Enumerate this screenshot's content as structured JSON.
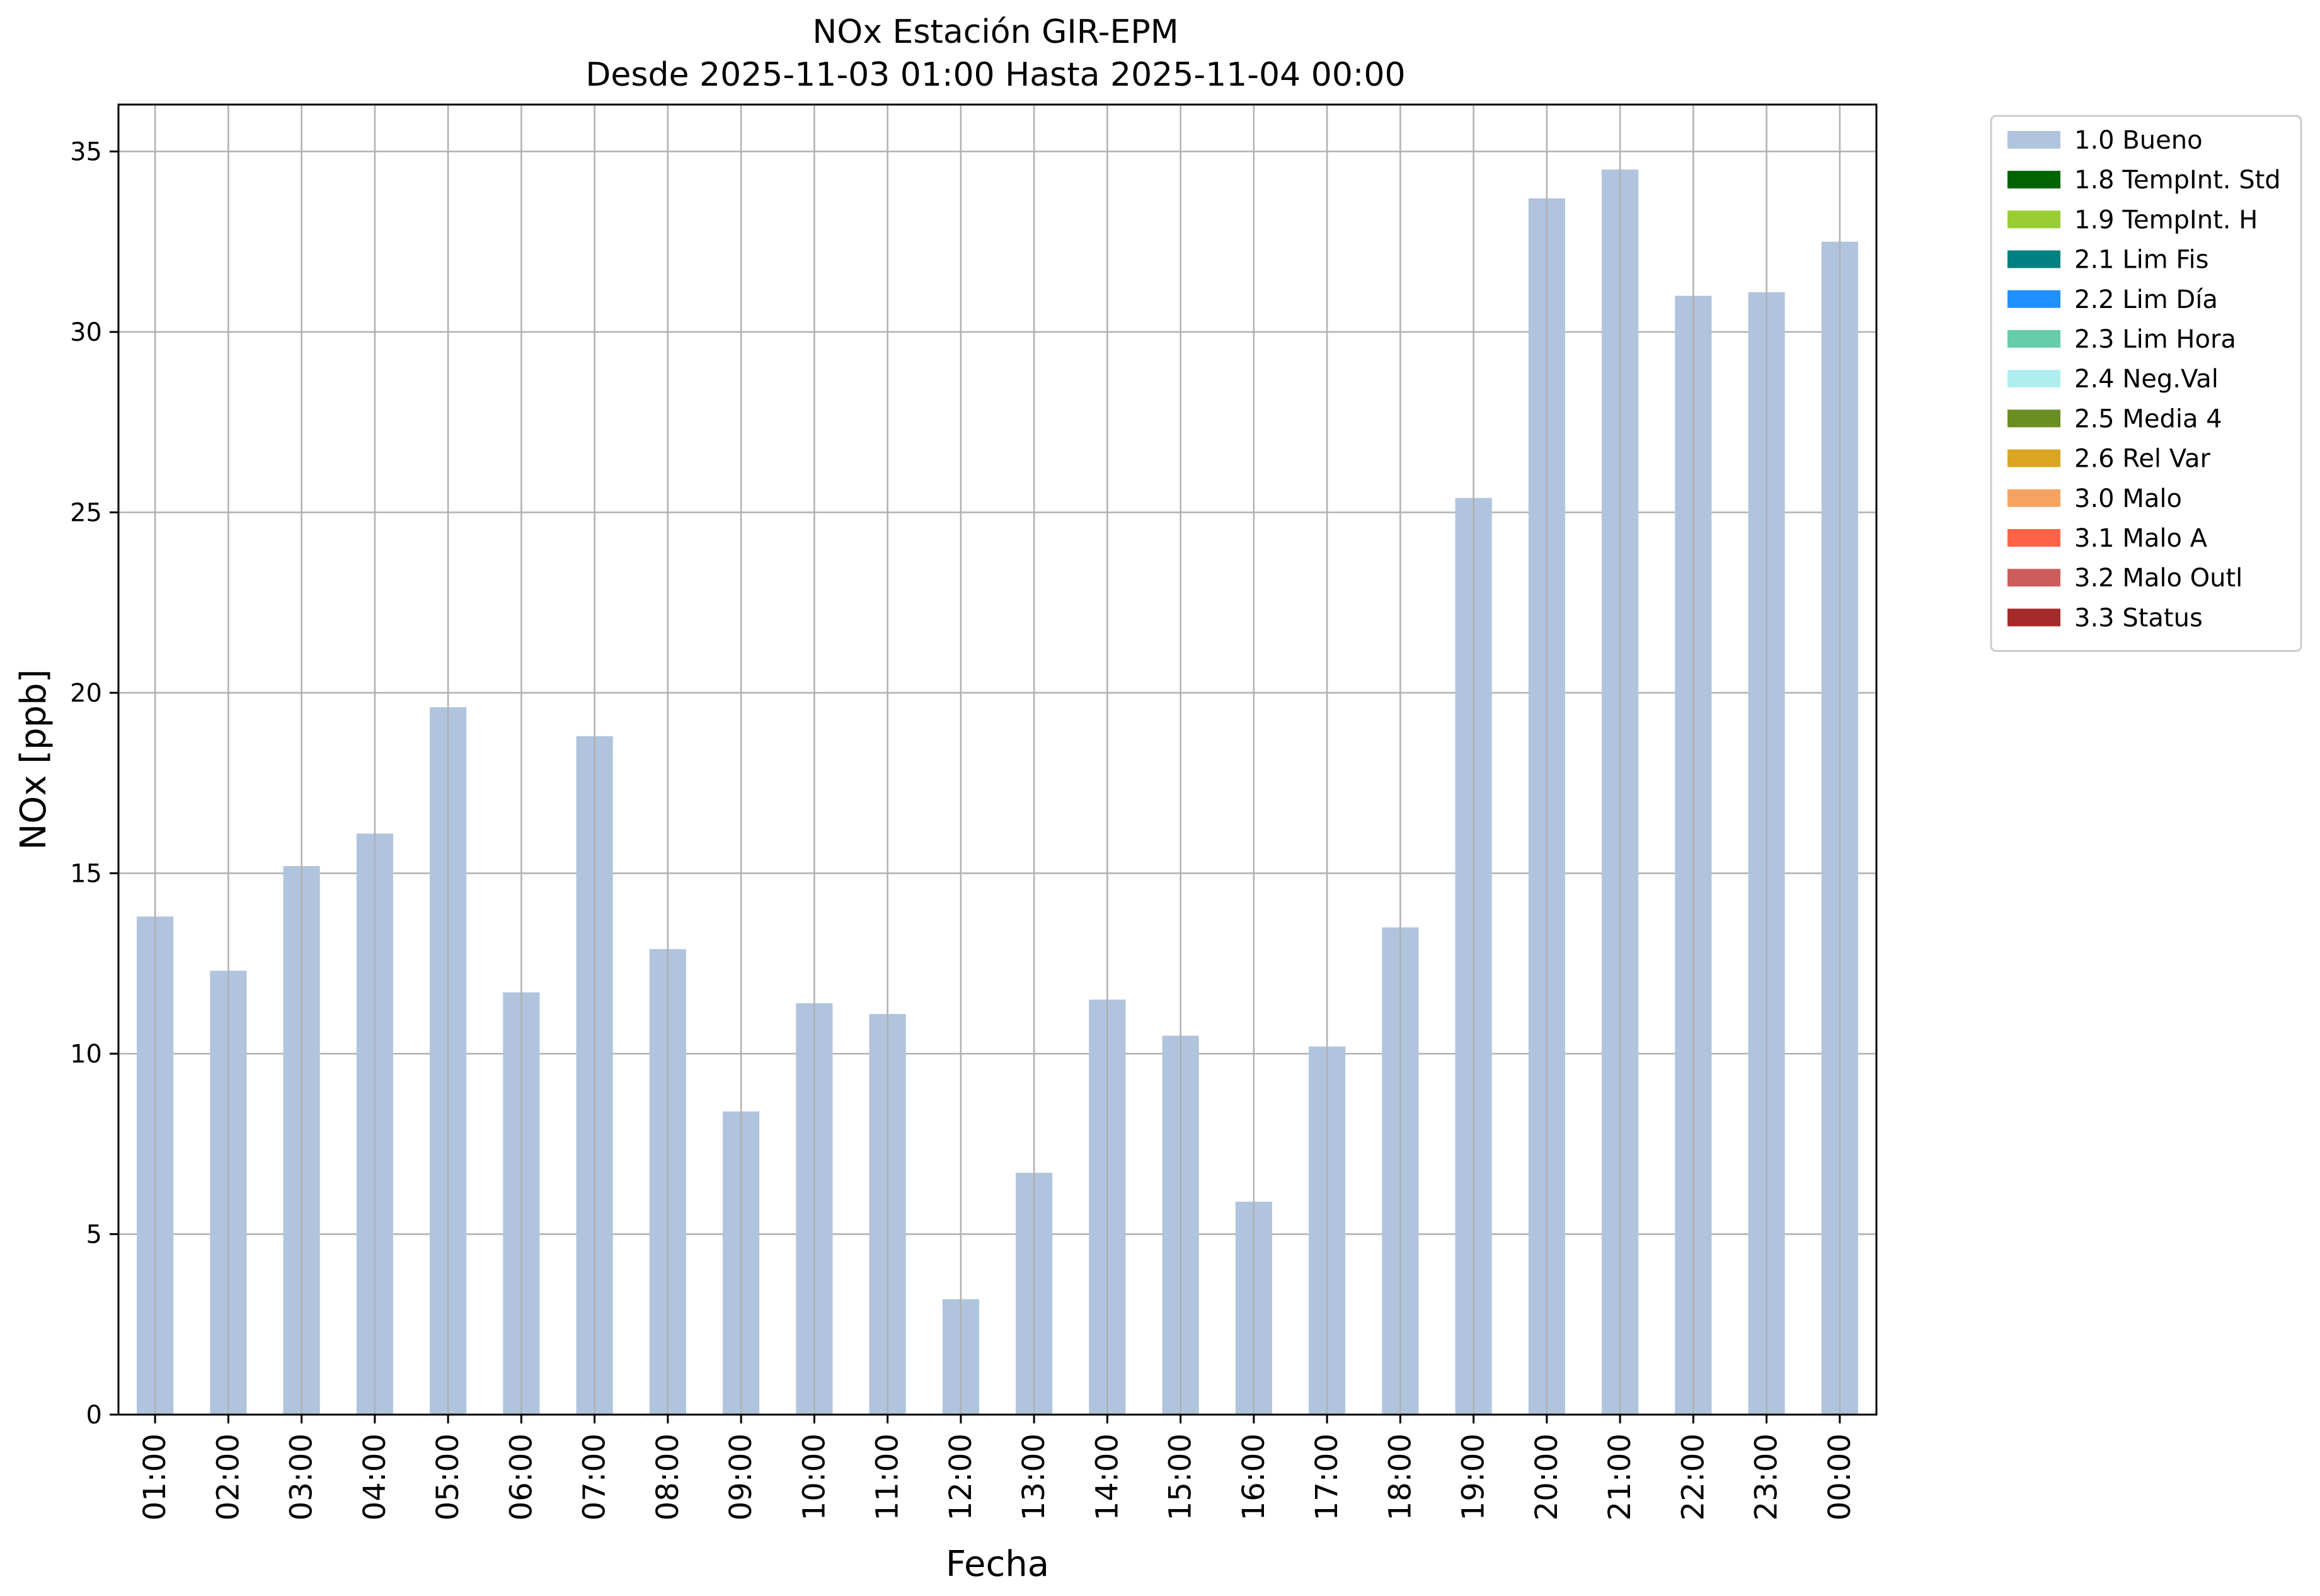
{
  "chart_data": {
    "type": "bar",
    "title": "NOx Estación GIR-EPM",
    "subtitle": "Desde 2025-11-03 01:00 Hasta 2025-11-04 00:00",
    "xlabel": "Fecha",
    "ylabel": "NOx [ppb]",
    "ylim": [
      0,
      36.3
    ],
    "yticks": [
      0,
      5,
      10,
      15,
      20,
      25,
      30,
      35
    ],
    "grid": true,
    "categories": [
      "01:00",
      "02:00",
      "03:00",
      "04:00",
      "05:00",
      "06:00",
      "07:00",
      "08:00",
      "09:00",
      "10:00",
      "11:00",
      "12:00",
      "13:00",
      "14:00",
      "15:00",
      "16:00",
      "17:00",
      "18:00",
      "19:00",
      "20:00",
      "21:00",
      "22:00",
      "23:00",
      "00:00"
    ],
    "series": [
      {
        "name": "1.0 Bueno",
        "color": "#b0c4de",
        "values": [
          13.8,
          12.3,
          15.2,
          16.1,
          19.6,
          11.7,
          18.8,
          12.9,
          8.4,
          11.4,
          11.1,
          3.2,
          6.7,
          11.5,
          10.5,
          5.9,
          10.2,
          13.5,
          25.4,
          33.7,
          34.5,
          31.0,
          31.1,
          32.5
        ]
      }
    ],
    "legend_position": "outside-top-right",
    "legend": [
      {
        "label": "1.0 Bueno",
        "color": "#b0c4de"
      },
      {
        "label": "1.8 TempInt. Std",
        "color": "#006400"
      },
      {
        "label": "1.9 TempInt. H",
        "color": "#9acd32"
      },
      {
        "label": "2.1 Lim Fis",
        "color": "#008080"
      },
      {
        "label": "2.2 Lim Día",
        "color": "#1e90ff"
      },
      {
        "label": "2.3 Lim Hora",
        "color": "#66cdaa"
      },
      {
        "label": "2.4 Neg.Val",
        "color": "#afeeee"
      },
      {
        "label": "2.5 Media 4",
        "color": "#6b8e23"
      },
      {
        "label": "2.6 Rel Var",
        "color": "#daa520"
      },
      {
        "label": "3.0 Malo",
        "color": "#f4a460"
      },
      {
        "label": "3.1 Malo A",
        "color": "#ff6347"
      },
      {
        "label": "3.2 Malo Outl",
        "color": "#cd5c5c"
      },
      {
        "label": "3.3 Status",
        "color": "#a52a2a"
      }
    ]
  }
}
